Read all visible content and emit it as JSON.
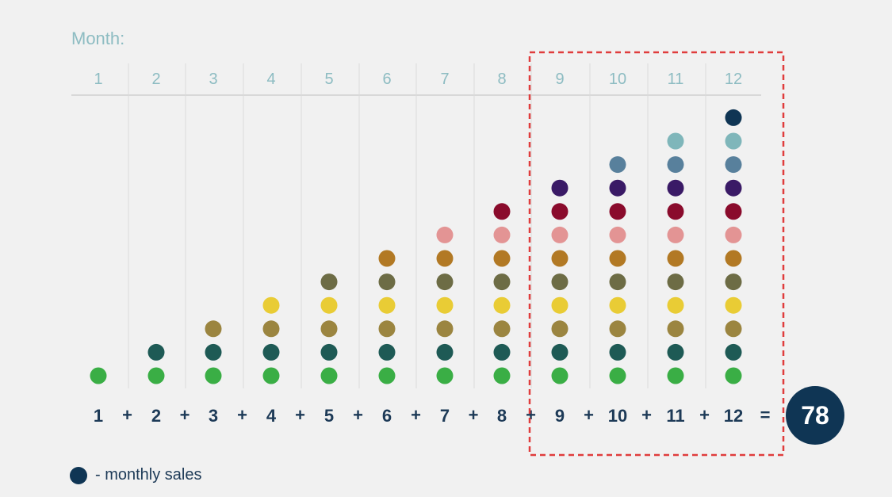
{
  "chart_data": {
    "type": "scatter",
    "title": "Month:",
    "months": [
      "1",
      "2",
      "3",
      "4",
      "5",
      "6",
      "7",
      "8",
      "9",
      "10",
      "11",
      "12"
    ],
    "values": [
      1,
      2,
      3,
      4,
      5,
      6,
      7,
      8,
      9,
      10,
      11,
      12
    ],
    "level_colors": [
      "#3aae45",
      "#1e5a55",
      "#9b8540",
      "#e9cc35",
      "#6d6c45",
      "#b27924",
      "#e39494",
      "#8a0b2c",
      "#3a1a66",
      "#58809c",
      "#7fb6ba",
      "#0f3554"
    ],
    "equation": {
      "operator_plus": "+",
      "operator_equals": "=",
      "total": "78"
    },
    "highlight": {
      "months": [
        "9",
        "10",
        "11",
        "12"
      ],
      "style": "dashed",
      "color": "#e03c3c"
    },
    "legend": {
      "label": "- monthly sales",
      "dot_color": "#0f3554"
    },
    "grid": true
  }
}
